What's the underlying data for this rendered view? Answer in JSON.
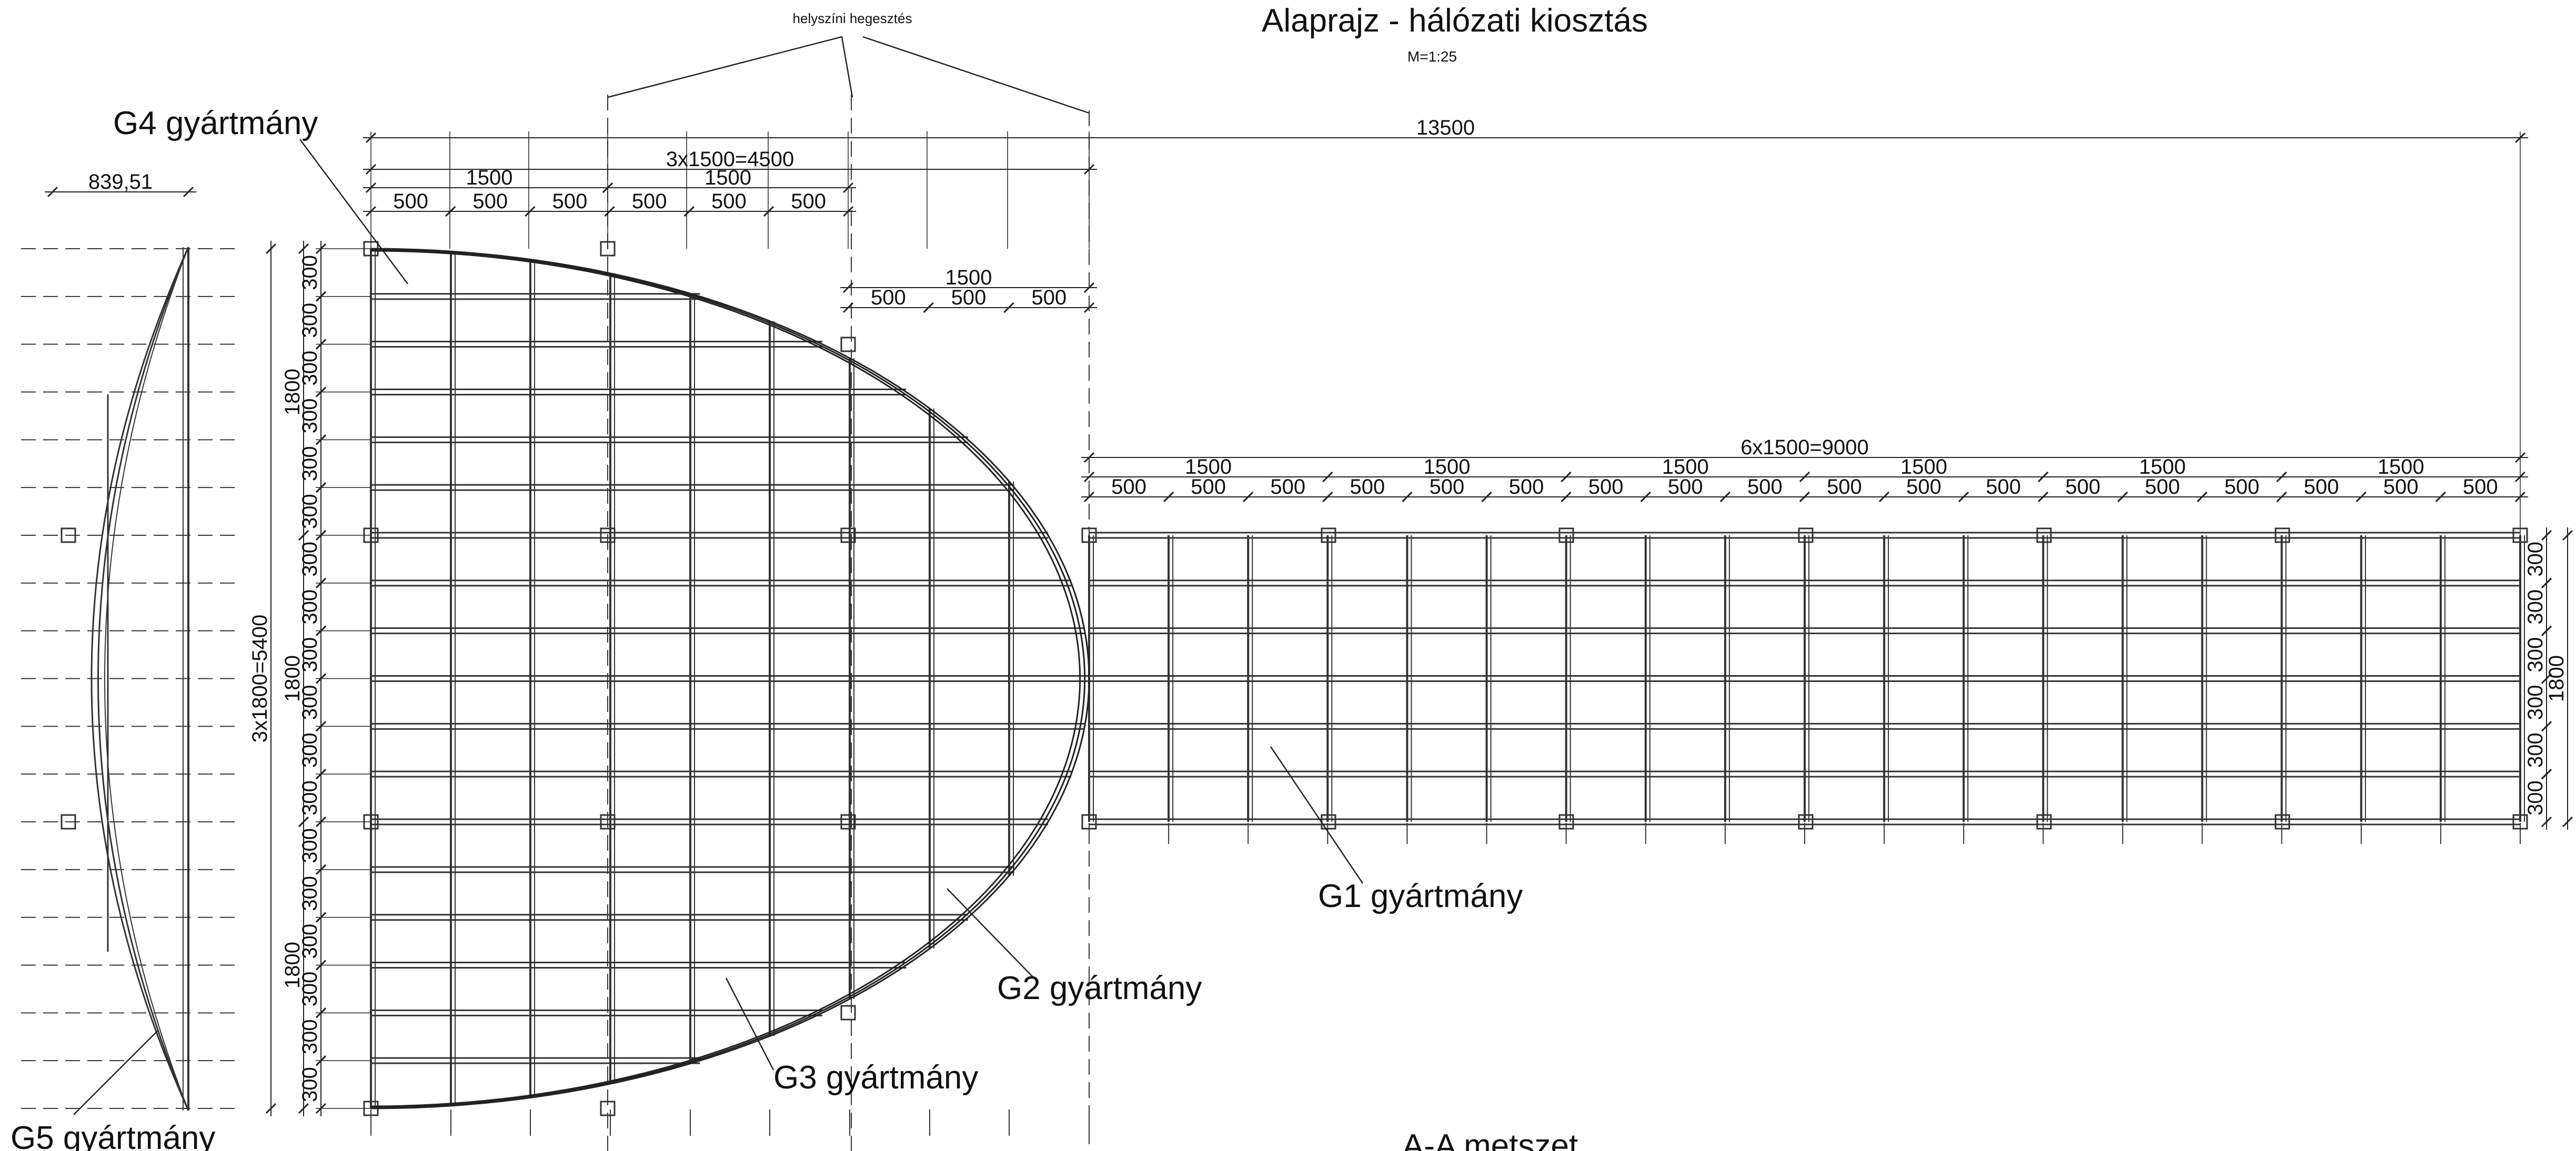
{
  "title": "Alaprajz - hálózati kiosztás",
  "scale": "M=1:25",
  "weld_note": "helyszíni hegesztés",
  "section_title": "A-A metszet",
  "labels": {
    "g1": "G1 gyártmány",
    "g2": "G2 gyártmány",
    "g3": "G3 gyártmány",
    "g4": "G4 gyártmány",
    "g5": "G5 gyártmány"
  },
  "dimensions": {
    "total_length": "13500",
    "left_total": "3x1500=4500",
    "right_total": "6x1500=9000",
    "height_total": "3x1800=5400",
    "bay": "1500",
    "module": "500",
    "band": "1800",
    "step": "300",
    "side_width": "839,51"
  }
}
